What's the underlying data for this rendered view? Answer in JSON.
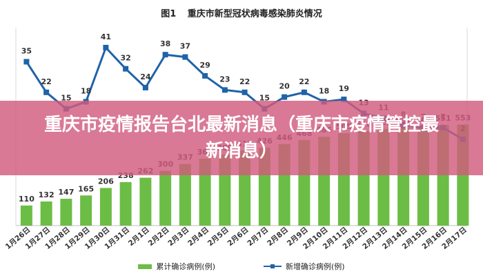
{
  "chart_data": {
    "type": "bar+line",
    "figure_label": "图1",
    "title": "重庆市新型冠状病毒感染肺炎情况",
    "categories": [
      "1月26日",
      "1月27日",
      "1月28日",
      "1月29日",
      "1月30日",
      "1月31日",
      "2月1日",
      "2月2日",
      "2月3日",
      "2月4日",
      "2月5日",
      "2月6日",
      "2月7日",
      "2月8日",
      "2月9日",
      "2月10日",
      "2月11日",
      "2月12日",
      "2月13日",
      "2月14日",
      "2月15日",
      "2月16日",
      "2月17日"
    ],
    "series": [
      {
        "name": "累计确诊病例(例)",
        "type": "bar",
        "color": "#6cbd45",
        "values": [
          110,
          132,
          147,
          165,
          206,
          238,
          262,
          300,
          337,
          366,
          389,
          411,
          426,
          446,
          468,
          486,
          505,
          518,
          529,
          537,
          544,
          551,
          553
        ]
      },
      {
        "name": "新增确诊病例(例)",
        "type": "line",
        "color": "#1f63a8",
        "values": [
          35,
          22,
          15,
          18,
          41,
          32,
          24,
          38,
          37,
          29,
          23,
          22,
          15,
          20,
          22,
          18,
          19,
          13,
          11,
          8,
          7,
          7,
          2
        ]
      }
    ],
    "legend_position": "bottom",
    "grid": false
  },
  "banner": {
    "headline": "重庆市疫情报告台北最新消息（重庆市疫情管控最新消息）"
  }
}
